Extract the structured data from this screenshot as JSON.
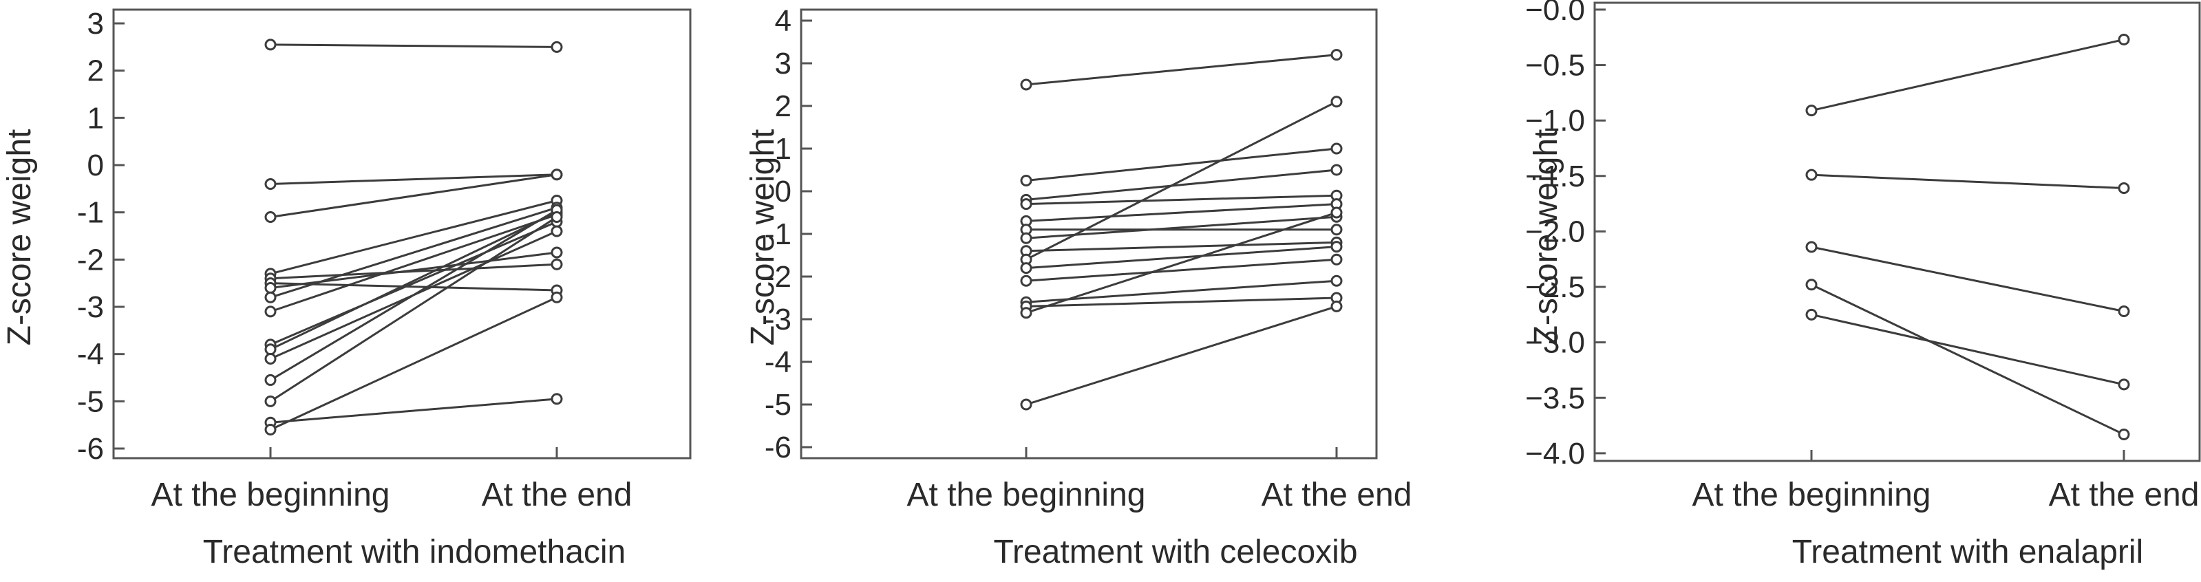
{
  "chart_data": [
    {
      "type": "line",
      "categories": [
        "At the beginning",
        "At the end"
      ],
      "xlabel": "Treatment with indomethacin",
      "ylabel": "Z-score weight",
      "ylim": [
        -6,
        3
      ],
      "yticks": [
        "3",
        "2",
        "1",
        "0",
        "-1",
        "-2",
        "-3",
        "-4",
        "-5",
        "-6"
      ],
      "grid": false,
      "series": [
        {
          "values": [
            2.55,
            2.5
          ]
        },
        {
          "values": [
            -0.4,
            -0.2
          ]
        },
        {
          "values": [
            -1.1,
            -0.2
          ]
        },
        {
          "values": [
            -2.3,
            -0.75
          ]
        },
        {
          "values": [
            -2.4,
            -2.1
          ]
        },
        {
          "values": [
            -2.5,
            -2.65
          ]
        },
        {
          "values": [
            -2.6,
            -1.85
          ]
        },
        {
          "values": [
            -2.8,
            -0.9
          ]
        },
        {
          "values": [
            -3.1,
            -1.05
          ]
        },
        {
          "values": [
            -3.8,
            -1.2
          ]
        },
        {
          "values": [
            -3.9,
            -1.0
          ]
        },
        {
          "values": [
            -4.1,
            -1.4
          ]
        },
        {
          "values": [
            -4.55,
            -0.95
          ]
        },
        {
          "values": [
            -5.0,
            -1.1
          ]
        },
        {
          "values": [
            -5.45,
            -4.95
          ]
        },
        {
          "values": [
            -5.6,
            -2.8
          ]
        }
      ]
    },
    {
      "type": "line",
      "categories": [
        "At the beginning",
        "At the end"
      ],
      "xlabel": "Treatment with celecoxib",
      "ylabel": "Z-score weight",
      "ylim": [
        -6,
        4
      ],
      "yticks": [
        "4",
        "3",
        "2",
        "1",
        "0",
        "-1",
        "-2",
        "-3",
        "-4",
        "-5",
        "-6"
      ],
      "grid": false,
      "series": [
        {
          "values": [
            2.5,
            3.2
          ]
        },
        {
          "values": [
            0.25,
            1.0
          ]
        },
        {
          "values": [
            -0.2,
            0.5
          ]
        },
        {
          "values": [
            -0.3,
            -0.1
          ]
        },
        {
          "values": [
            -0.7,
            -0.3
          ]
        },
        {
          "values": [
            -0.9,
            -0.9
          ]
        },
        {
          "values": [
            -1.1,
            -0.6
          ]
        },
        {
          "values": [
            -1.4,
            -1.2
          ]
        },
        {
          "values": [
            -1.6,
            2.1
          ]
        },
        {
          "values": [
            -1.8,
            -1.3
          ]
        },
        {
          "values": [
            -2.1,
            -1.6
          ]
        },
        {
          "values": [
            -2.6,
            -2.1
          ]
        },
        {
          "values": [
            -2.7,
            -2.5
          ]
        },
        {
          "values": [
            -2.85,
            -0.5
          ]
        },
        {
          "values": [
            -5.0,
            -2.7
          ]
        }
      ]
    },
    {
      "type": "line",
      "categories": [
        "At the beginning",
        "At the end"
      ],
      "xlabel": "Treatment with enalapril",
      "ylabel": "Z-score weight",
      "ylim": [
        -4.1,
        -0.05
      ],
      "yticks": [
        "−0.0",
        "−0.5",
        "−1.0",
        "−1.5",
        "−2.0",
        "−2.5",
        "−3.0",
        "−3.5",
        "−4.0"
      ],
      "grid": false,
      "series": [
        {
          "values": [
            -0.91,
            -0.27
          ]
        },
        {
          "values": [
            -1.49,
            -1.61
          ]
        },
        {
          "values": [
            -2.14,
            -2.72
          ]
        },
        {
          "values": [
            -2.48,
            -3.83
          ]
        },
        {
          "values": [
            -2.75,
            -3.38
          ]
        }
      ]
    }
  ]
}
